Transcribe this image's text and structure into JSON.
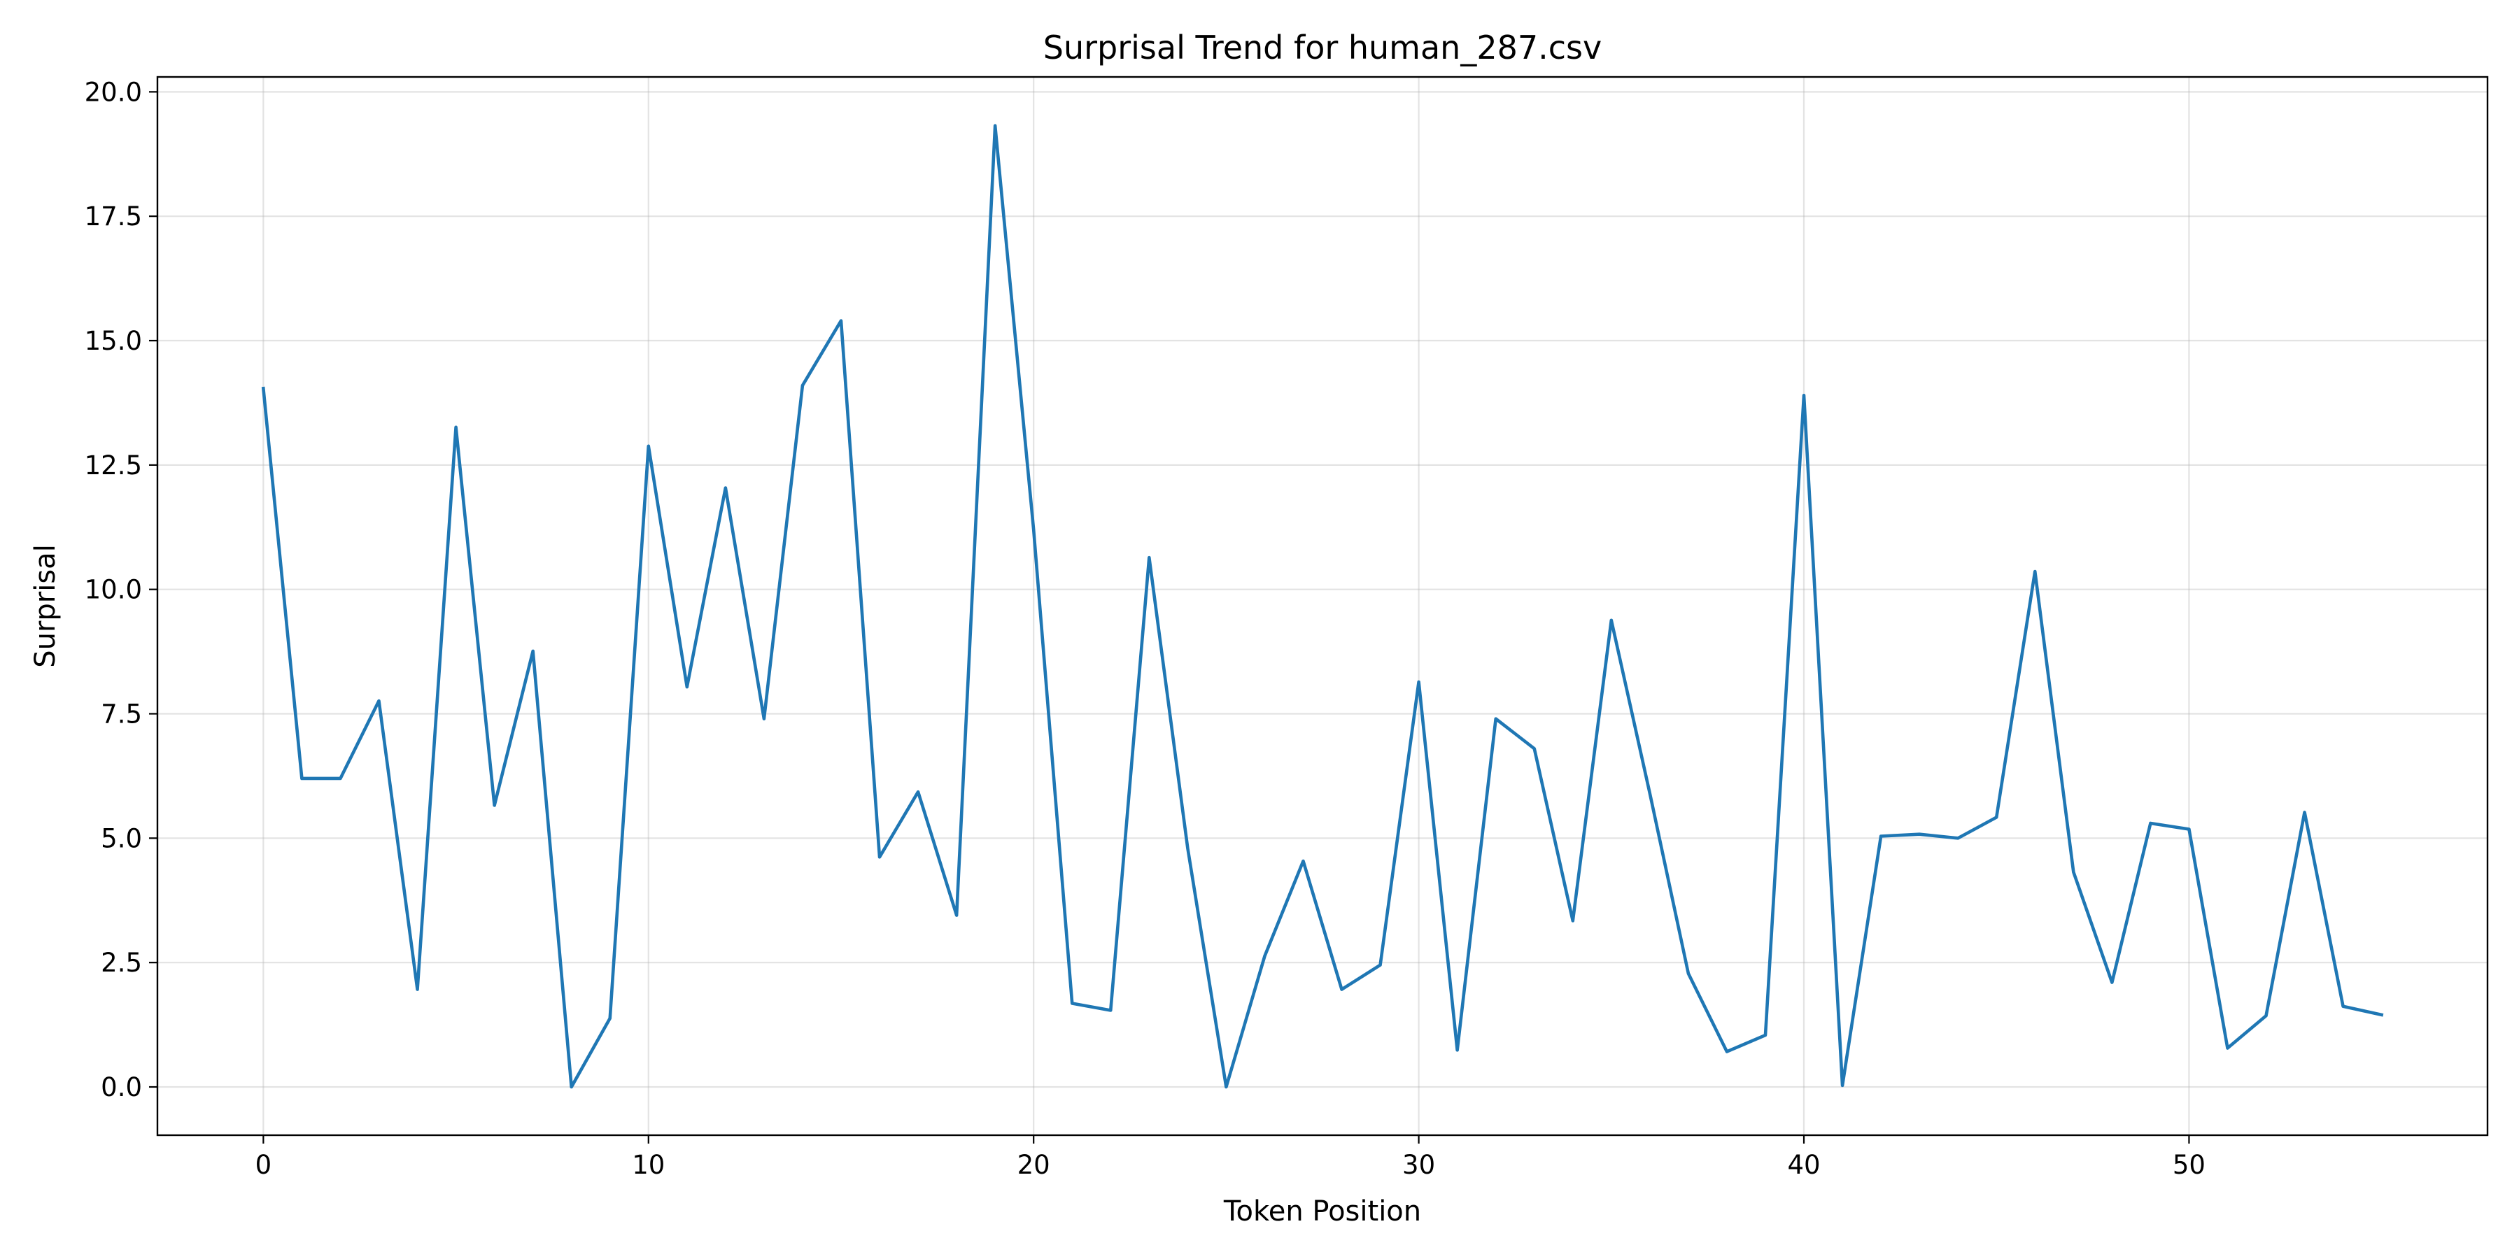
{
  "chart_data": {
    "type": "line",
    "title": "Surprisal Trend for human_287.csv",
    "xlabel": "Token Position",
    "ylabel": "Surprisal",
    "xlim": [
      -2.75,
      57.75
    ],
    "ylim": [
      -0.97,
      20.3
    ],
    "xticks": [
      0,
      10,
      20,
      30,
      40,
      50
    ],
    "yticks": [
      0.0,
      2.5,
      5.0,
      7.5,
      10.0,
      12.5,
      15.0,
      17.5,
      20.0
    ],
    "ytick_labels": [
      "0.0",
      "2.5",
      "5.0",
      "7.5",
      "10.0",
      "12.5",
      "15.0",
      "17.5",
      "20.0"
    ],
    "grid": true,
    "legend": "none",
    "color": "#1f77b4",
    "series": [
      {
        "x": [
          0,
          1,
          2,
          3,
          4,
          5,
          6,
          7,
          8,
          9,
          10,
          11,
          12,
          13,
          14,
          15,
          16,
          17,
          18,
          19,
          20,
          21,
          22,
          23,
          24,
          25,
          26,
          27,
          28,
          29,
          30,
          31,
          32,
          33,
          34,
          35,
          36,
          37,
          38,
          39,
          40,
          41,
          42,
          43,
          44,
          45,
          46,
          47,
          48,
          49,
          50,
          51,
          52,
          53,
          54,
          55
        ],
        "values": [
          14.04,
          6.2,
          6.2,
          7.76,
          1.96,
          13.26,
          5.66,
          8.76,
          0.0,
          1.38,
          12.88,
          8.04,
          12.04,
          7.4,
          14.1,
          15.4,
          4.62,
          5.93,
          3.45,
          19.32,
          11.2,
          1.68,
          1.54,
          10.64,
          4.8,
          0.0,
          2.63,
          4.54,
          1.96,
          2.45,
          8.14,
          0.74,
          7.4,
          6.8,
          3.34,
          9.38,
          5.9,
          2.28,
          0.71,
          1.04,
          13.9,
          0.03,
          5.04,
          5.08,
          5.0,
          5.42,
          10.36,
          4.32,
          2.1,
          5.3,
          5.18,
          0.78,
          1.43,
          5.52,
          1.62,
          1.45
        ]
      }
    ]
  }
}
